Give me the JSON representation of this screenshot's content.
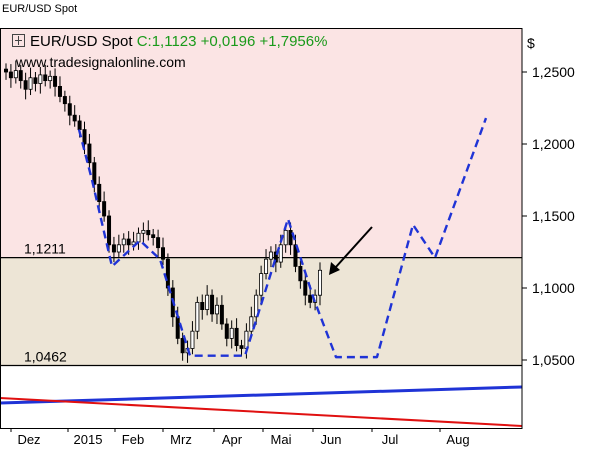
{
  "top_label": "EUR/USD Spot",
  "legend": {
    "name": "EUR/USD Spot",
    "close": "C:1,1123",
    "change": "+0,0196",
    "change_pct": "+1,7956%"
  },
  "source": "www.tradesignalonline.com",
  "currency": "$",
  "colors": {
    "bg_upper": "#fbe4e4",
    "bg_band": "#ede5d6",
    "bg_lower": "#ffffff",
    "candle": "#000000",
    "projection": "#1f33d6",
    "blue_line": "#1f33d6",
    "red_line": "#e01010",
    "change": "#1a9a1a"
  },
  "chart_data": {
    "type": "candlestick",
    "ylim": [
      1.005,
      1.27
    ],
    "y_ticks": [
      {
        "value": 1.25,
        "label": "1,2500"
      },
      {
        "value": 1.2,
        "label": "1,2000"
      },
      {
        "value": 1.15,
        "label": "1,1500"
      },
      {
        "value": 1.1,
        "label": "1,1000"
      },
      {
        "value": 1.05,
        "label": "1,0500"
      }
    ],
    "x_ticks": [
      "Dez",
      "2015",
      "Feb",
      "Mrz",
      "Apr",
      "Mai",
      "Jun",
      "Jul",
      "Aug"
    ],
    "levels": [
      {
        "value": 1.1211,
        "label": "1,1211"
      },
      {
        "value": 1.0462,
        "label": "1,0462"
      }
    ],
    "close_series": [
      1.25,
      1.246,
      1.251,
      1.244,
      1.238,
      1.246,
      1.242,
      1.248,
      1.244,
      1.247,
      1.24,
      1.233,
      1.228,
      1.22,
      1.216,
      1.21,
      1.2,
      1.187,
      1.172,
      1.16,
      1.15,
      1.13,
      1.125,
      1.13,
      1.134,
      1.13,
      1.132,
      1.138,
      1.14,
      1.137,
      1.135,
      1.128,
      1.12,
      1.1,
      1.08,
      1.065,
      1.055,
      1.058,
      1.07,
      1.09,
      1.085,
      1.095,
      1.082,
      1.088,
      1.075,
      1.065,
      1.072,
      1.06,
      1.058,
      1.07,
      1.08,
      1.095,
      1.11,
      1.12,
      1.125,
      1.118,
      1.13,
      1.14,
      1.13,
      1.115,
      1.105,
      1.095,
      1.09,
      1.095,
      1.1123
    ],
    "projection": [
      {
        "date": "mid Jan",
        "value": 1.21
      },
      {
        "date": "late Jan",
        "value": 1.175
      },
      {
        "date": "early Feb",
        "value": 1.115
      },
      {
        "date": "mid Feb",
        "value": 1.133
      },
      {
        "date": "late Feb",
        "value": 1.12
      },
      {
        "date": "mid Mar",
        "value": 1.053
      },
      {
        "date": "early Apr",
        "value": 1.053
      },
      {
        "date": "mid Apr",
        "value": 1.053
      },
      {
        "date": "mid May",
        "value": 1.148
      },
      {
        "date": "late May",
        "value": 1.092
      },
      {
        "date": "mid Jun",
        "value": 1.052
      },
      {
        "date": "late Jun",
        "value": 1.052
      },
      {
        "date": "mid Jul",
        "value": 1.144
      },
      {
        "date": "late Jul",
        "value": 1.121
      },
      {
        "date": "mid Aug",
        "value": 1.218
      }
    ],
    "blue_trendline": [
      1.02,
      1.03
    ],
    "red_trendline": [
      1.022,
      1.005
    ],
    "annotation": "arrow"
  }
}
